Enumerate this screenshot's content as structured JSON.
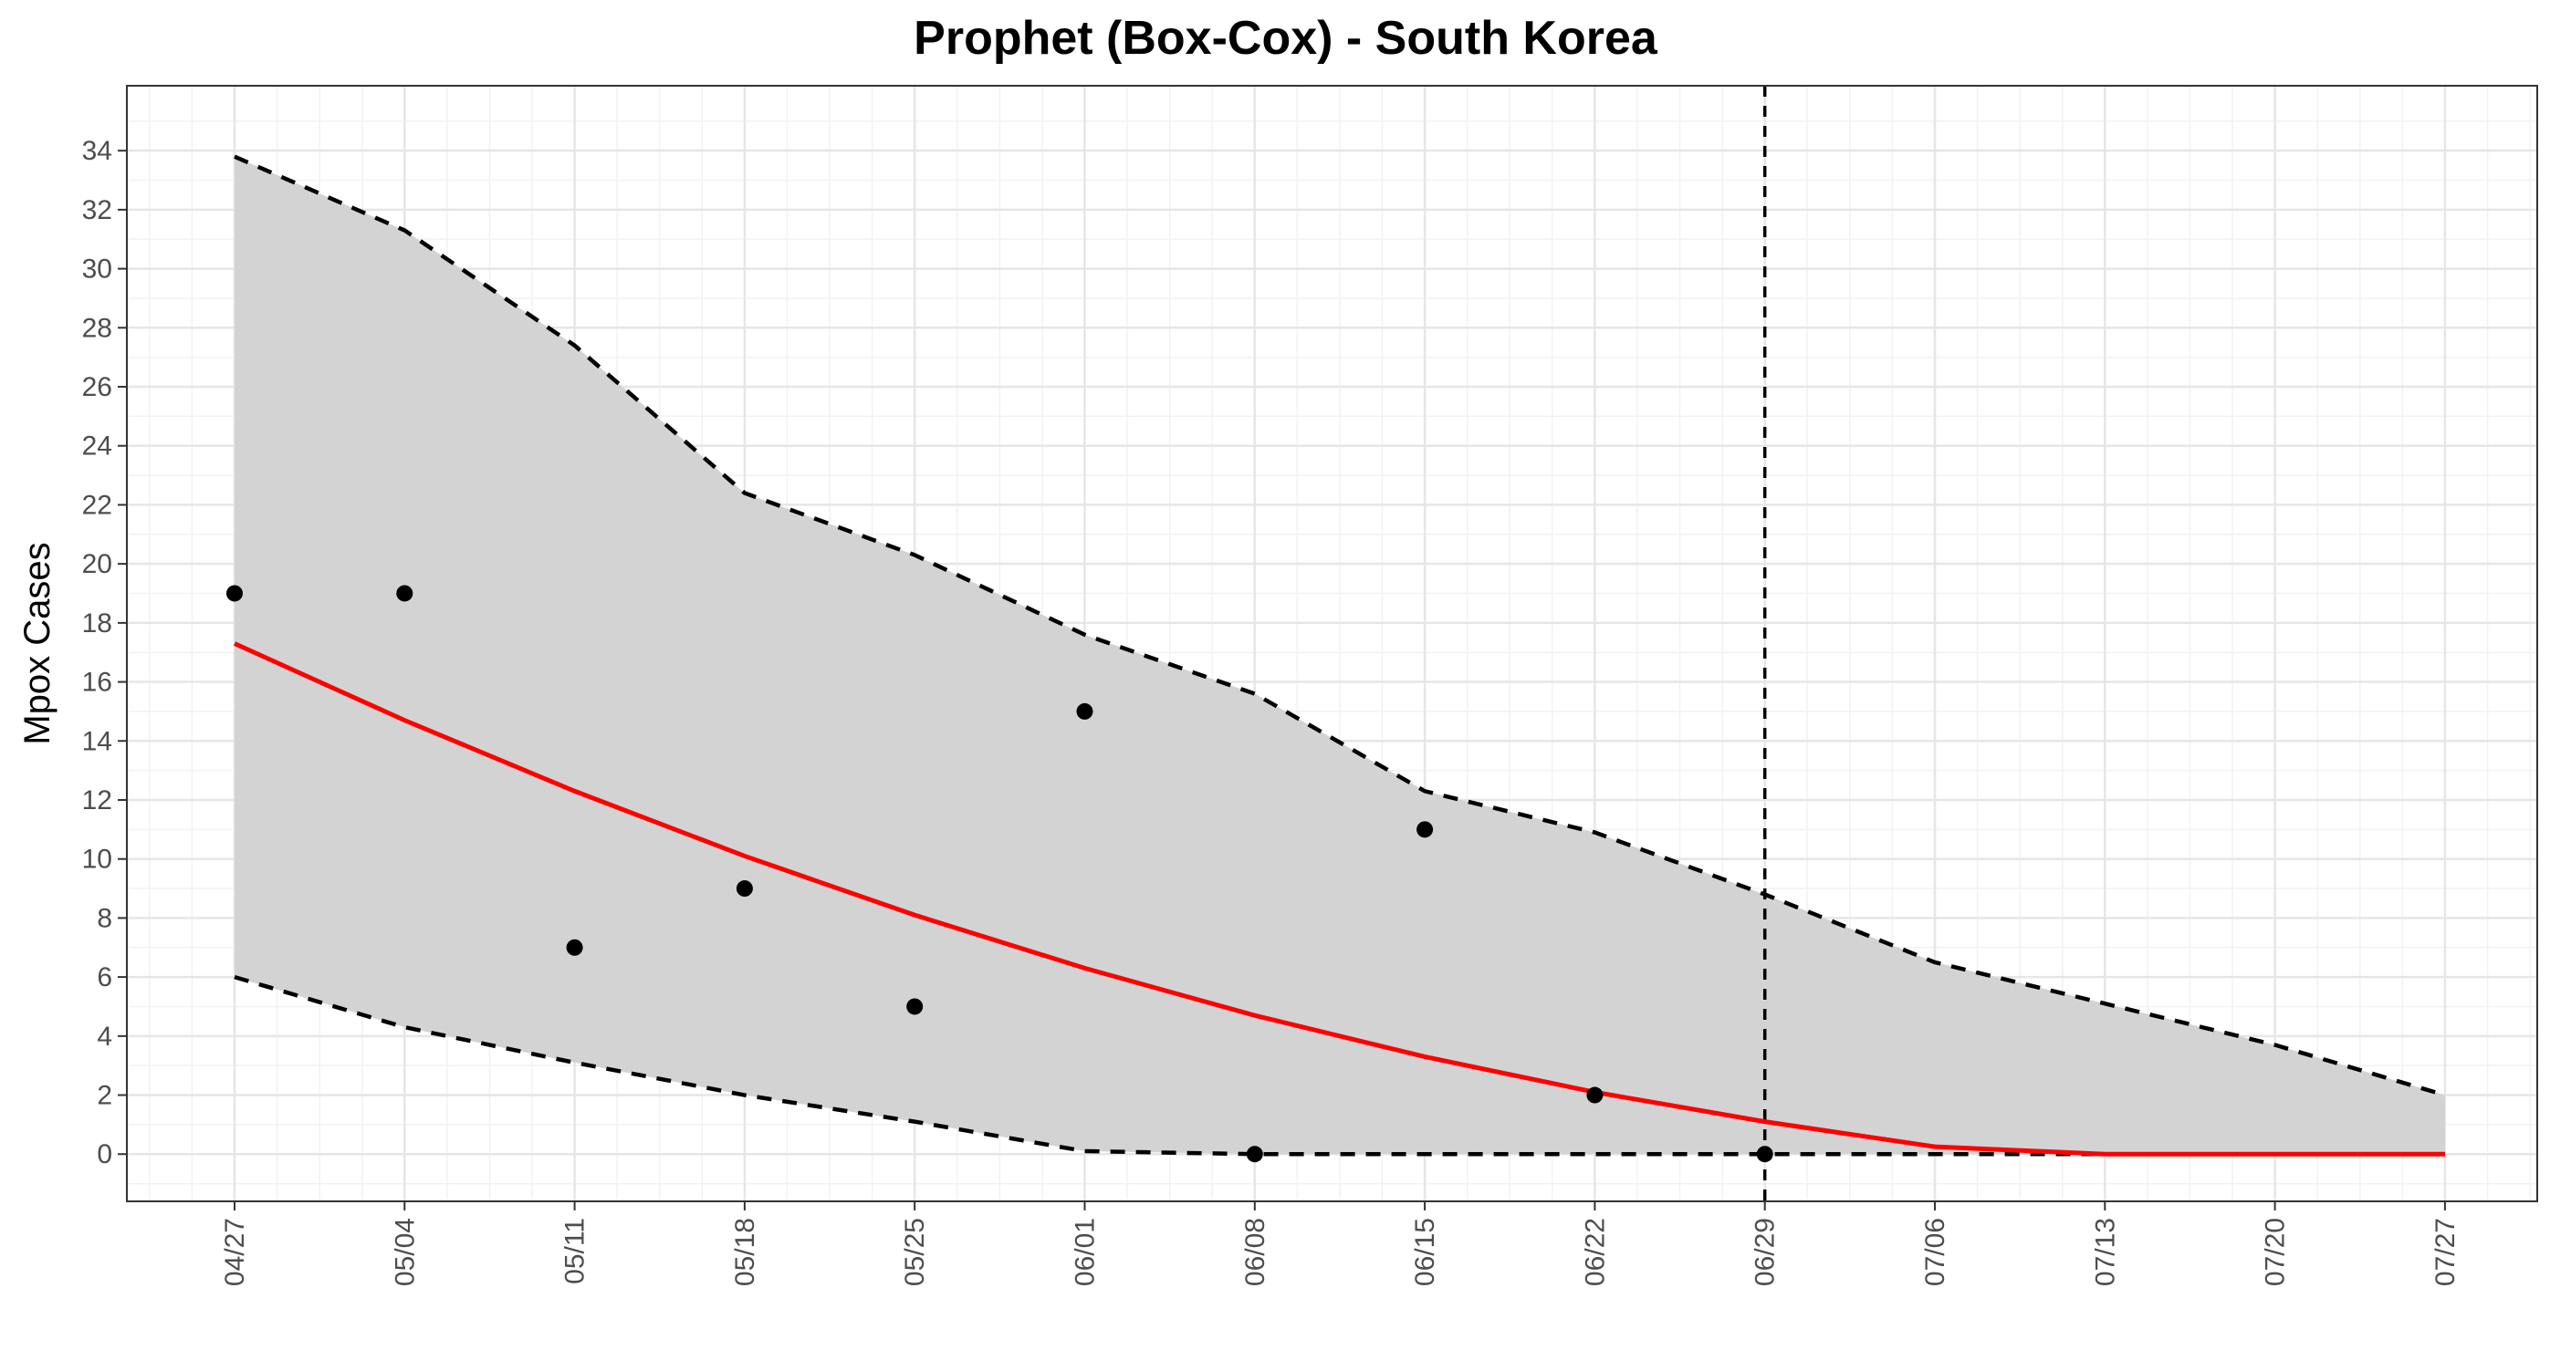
{
  "chart_data": {
    "type": "line",
    "title": "Prophet (Box-Cox) - South Korea",
    "xlabel": "",
    "ylabel": "Mpox Cases",
    "x": [
      "04/27",
      "05/04",
      "05/11",
      "05/18",
      "05/25",
      "06/01",
      "06/08",
      "06/15",
      "06/22",
      "06/29",
      "07/06",
      "07/13",
      "07/20",
      "07/27"
    ],
    "ylim": [
      -1.6,
      36.2
    ],
    "yticks": [
      0,
      2,
      4,
      6,
      8,
      10,
      12,
      14,
      16,
      18,
      20,
      22,
      24,
      26,
      28,
      30,
      32,
      34
    ],
    "grid": true,
    "forecast_start": "06/29",
    "series": [
      {
        "role": "fitted",
        "color": "#ff0000",
        "values": [
          17.3,
          14.7,
          12.3,
          10.1,
          8.1,
          6.3,
          4.7,
          3.3,
          2.1,
          1.1,
          0.25,
          0.0,
          0.0,
          0.0
        ]
      },
      {
        "role": "upper",
        "color": "#000000",
        "values": [
          33.8,
          31.3,
          27.4,
          22.4,
          20.3,
          17.6,
          15.6,
          12.3,
          10.9,
          8.8,
          6.5,
          5.1,
          3.7,
          2.0
        ]
      },
      {
        "role": "lower",
        "color": "#000000",
        "values": [
          6.0,
          4.3,
          3.1,
          2.0,
          1.1,
          0.1,
          0.0,
          0.0,
          0.0,
          0.0,
          0.0,
          0.0,
          0.0,
          0.0
        ]
      },
      {
        "role": "observed",
        "color": "#000000",
        "x": [
          "04/27",
          "05/04",
          "05/11",
          "05/18",
          "05/25",
          "06/01",
          "06/08",
          "06/15",
          "06/22",
          "06/29"
        ],
        "values": [
          19,
          19,
          7,
          9,
          5,
          15,
          0,
          11,
          2,
          0
        ]
      }
    ],
    "band_color": "#d3d3d3"
  }
}
